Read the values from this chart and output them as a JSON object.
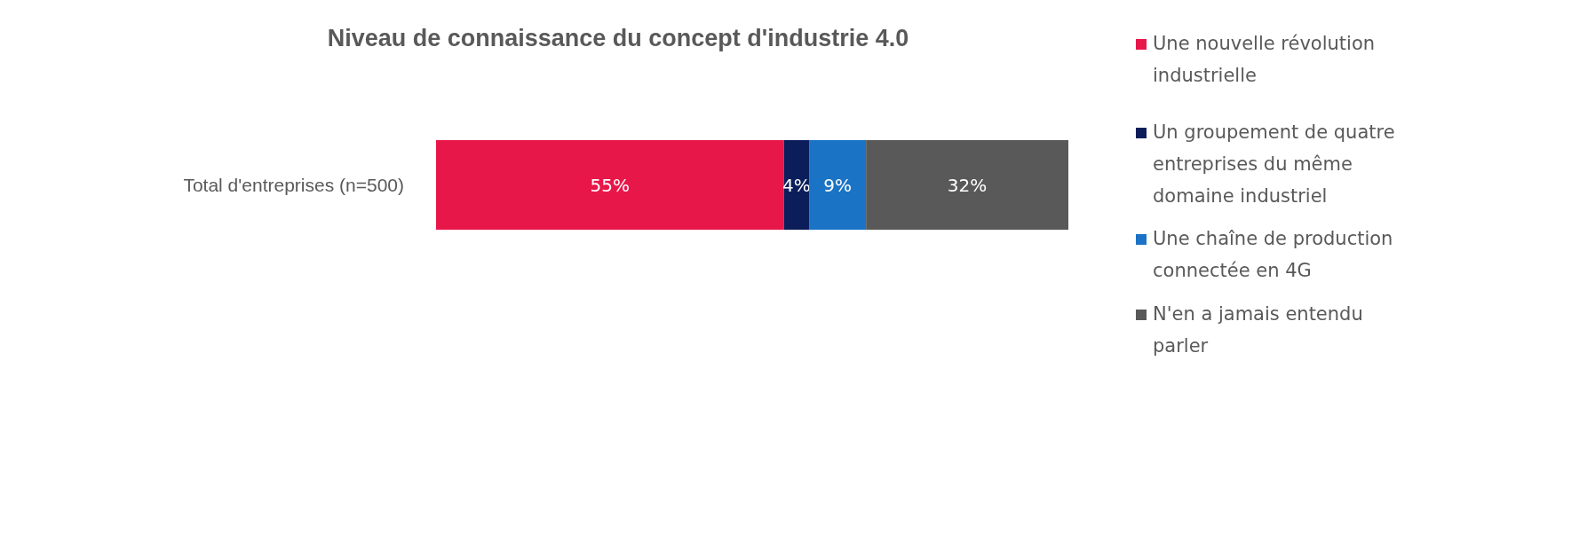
{
  "chart_data": {
    "type": "bar",
    "title": "Niveau de connaissance du concept d'industrie 4.0",
    "orientation": "horizontal",
    "stacked": true,
    "legend": "right",
    "tick_labels": "y",
    "categories": [
      "Total d'entreprises (n=500)"
    ],
    "series": [
      {
        "name": "Une nouvelle révolution industrielle",
        "color": "#e8174a",
        "values": [
          55
        ],
        "value_labels": [
          "55%"
        ]
      },
      {
        "name": "Un groupement de quatre entreprises du même domaine industriel",
        "color": "#0b1e5b",
        "values": [
          4
        ],
        "value_labels": [
          "4%"
        ]
      },
      {
        "name": "Une chaîne de production connectée en 4G",
        "color": "#1a73c4",
        "values": [
          9
        ],
        "value_labels": [
          "9%"
        ]
      },
      {
        "name": "N'en a jamais entendu parler",
        "color": "#595959",
        "values": [
          32
        ],
        "value_labels": [
          "32%"
        ]
      }
    ]
  }
}
